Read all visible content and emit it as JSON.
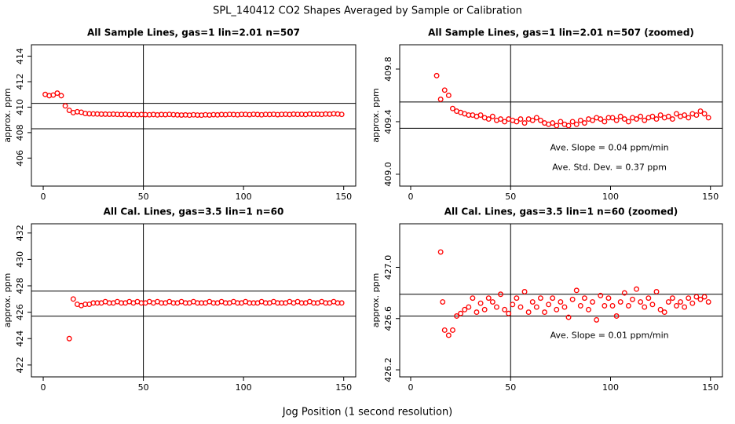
{
  "title": "SPL_140412  CO2 Shapes Averaged by Sample or Calibration",
  "x_label": "Jog Position (1 second resolution)",
  "chart_data": [
    {
      "type": "scatter",
      "title": "All Sample Lines, gas=1 lin=2.01 n=507",
      "y_label": "approx. ppm",
      "color": "#ff0000",
      "xlim": [
        -5.9,
        156
      ],
      "ylim": [
        403.8,
        414.9
      ],
      "xticks": [
        0,
        50,
        100,
        150
      ],
      "yticks": [
        406,
        408,
        410,
        412,
        414
      ],
      "hlines": [
        410.3,
        408.3
      ],
      "vlines": [
        50
      ],
      "x": [
        1,
        3,
        5,
        7,
        9,
        11,
        13,
        15,
        17,
        19,
        21,
        23,
        25,
        27,
        29,
        31,
        33,
        35,
        37,
        39,
        41,
        43,
        45,
        47,
        49,
        51,
        53,
        55,
        57,
        59,
        61,
        63,
        65,
        67,
        69,
        71,
        73,
        75,
        77,
        79,
        81,
        83,
        85,
        87,
        89,
        91,
        93,
        95,
        97,
        99,
        101,
        103,
        105,
        107,
        109,
        111,
        113,
        115,
        117,
        119,
        121,
        123,
        125,
        127,
        129,
        131,
        133,
        135,
        137,
        139,
        141,
        143,
        145,
        147,
        149
      ],
      "values": [
        411.0,
        410.9,
        410.95,
        411.1,
        410.9,
        410.1,
        409.75,
        409.57,
        409.64,
        409.6,
        409.5,
        409.48,
        409.47,
        409.46,
        409.45,
        409.45,
        409.44,
        409.45,
        409.43,
        409.42,
        409.44,
        409.41,
        409.42,
        409.4,
        409.42,
        409.41,
        409.4,
        409.42,
        409.39,
        409.42,
        409.41,
        409.43,
        409.41,
        409.39,
        409.38,
        409.39,
        409.37,
        409.4,
        409.38,
        409.37,
        409.4,
        409.38,
        409.41,
        409.39,
        409.42,
        409.41,
        409.43,
        409.42,
        409.4,
        409.43,
        409.43,
        409.41,
        409.44,
        409.42,
        409.4,
        409.43,
        409.42,
        409.44,
        409.41,
        409.43,
        409.44,
        409.42,
        409.45,
        409.43,
        409.44,
        409.42,
        409.46,
        409.44,
        409.45,
        409.43,
        409.46,
        409.45,
        409.48,
        409.46,
        409.43
      ]
    },
    {
      "type": "scatter",
      "title": "All Sample Lines, gas=1 lin=2.01 n=507 (zoomed)",
      "y_label": "approx. ppm",
      "color": "#ff0000",
      "xlim": [
        -5.5,
        156
      ],
      "ylim": [
        408.91,
        409.985
      ],
      "xticks": [
        0,
        50,
        100,
        150
      ],
      "yticks": [
        {
          "value": 409.0,
          "label": "409.0"
        },
        409.4,
        409.8
      ],
      "hlines": [
        409.55,
        409.35
      ],
      "vlines": [
        50
      ],
      "annotations": [
        "Ave. Slope =  0.04  ppm/min",
        "Ave. Std. Dev. =  0.37  ppm"
      ],
      "x": [
        13,
        15,
        17,
        19,
        21,
        23,
        25,
        27,
        29,
        31,
        33,
        35,
        37,
        39,
        41,
        43,
        45,
        47,
        49,
        51,
        53,
        55,
        57,
        59,
        61,
        63,
        65,
        67,
        69,
        71,
        73,
        75,
        77,
        79,
        81,
        83,
        85,
        87,
        89,
        91,
        93,
        95,
        97,
        99,
        101,
        103,
        105,
        107,
        109,
        111,
        113,
        115,
        117,
        119,
        121,
        123,
        125,
        127,
        129,
        131,
        133,
        135,
        137,
        139,
        141,
        143,
        145,
        147,
        149
      ],
      "values": [
        409.75,
        409.57,
        409.64,
        409.6,
        409.5,
        409.48,
        409.47,
        409.46,
        409.45,
        409.45,
        409.44,
        409.45,
        409.43,
        409.42,
        409.44,
        409.41,
        409.42,
        409.4,
        409.42,
        409.41,
        409.4,
        409.42,
        409.39,
        409.42,
        409.41,
        409.43,
        409.41,
        409.39,
        409.38,
        409.39,
        409.37,
        409.4,
        409.38,
        409.37,
        409.4,
        409.38,
        409.41,
        409.39,
        409.42,
        409.41,
        409.43,
        409.42,
        409.4,
        409.43,
        409.43,
        409.41,
        409.44,
        409.42,
        409.4,
        409.43,
        409.42,
        409.44,
        409.41,
        409.43,
        409.44,
        409.42,
        409.45,
        409.43,
        409.44,
        409.42,
        409.46,
        409.44,
        409.45,
        409.43,
        409.46,
        409.45,
        409.48,
        409.46,
        409.43
      ]
    },
    {
      "type": "scatter",
      "title": "All Cal. Lines, gas=3.5 lin=1 n=60",
      "y_label": "approx. ppm",
      "color": "#ff0000",
      "xlim": [
        -5.9,
        156
      ],
      "ylim": [
        421.1,
        432.7
      ],
      "xticks": [
        0,
        50,
        100,
        150
      ],
      "yticks": [
        422,
        424,
        426,
        428,
        430,
        432
      ],
      "hlines": [
        427.6,
        425.7
      ],
      "vlines": [
        50
      ],
      "x": [
        13,
        15,
        17,
        19,
        21,
        23,
        25,
        27,
        29,
        31,
        33,
        35,
        37,
        39,
        41,
        43,
        45,
        47,
        49,
        51,
        53,
        55,
        57,
        59,
        61,
        63,
        65,
        67,
        69,
        71,
        73,
        75,
        77,
        79,
        81,
        83,
        85,
        87,
        89,
        91,
        93,
        95,
        97,
        99,
        101,
        103,
        105,
        107,
        109,
        111,
        113,
        115,
        117,
        119,
        121,
        123,
        125,
        127,
        129,
        131,
        133,
        135,
        137,
        139,
        141,
        143,
        145,
        147,
        149
      ],
      "values": [
        424.0,
        427.0,
        426.6,
        426.5,
        426.6,
        426.6,
        426.7,
        426.7,
        426.7,
        426.8,
        426.7,
        426.7,
        426.8,
        426.7,
        426.7,
        426.8,
        426.7,
        426.8,
        426.7,
        426.7,
        426.8,
        426.7,
        426.8,
        426.7,
        426.7,
        426.8,
        426.7,
        426.7,
        426.8,
        426.7,
        426.7,
        426.8,
        426.7,
        426.7,
        426.7,
        426.8,
        426.7,
        426.7,
        426.8,
        426.7,
        426.7,
        426.8,
        426.7,
        426.7,
        426.8,
        426.7,
        426.7,
        426.7,
        426.8,
        426.7,
        426.7,
        426.8,
        426.7,
        426.7,
        426.7,
        426.8,
        426.7,
        426.8,
        426.7,
        426.7,
        426.8,
        426.7,
        426.7,
        426.8,
        426.7,
        426.7,
        426.8,
        426.7,
        426.7
      ]
    },
    {
      "type": "scatter",
      "title": "All Cal. Lines, gas=3.5 lin=1 n=60 (zoomed)",
      "y_label": "approx. ppm",
      "color": "#ff0000",
      "xlim": [
        -5.5,
        156
      ],
      "ylim": [
        426.145,
        427.34
      ],
      "xticks": [
        0,
        50,
        100,
        150
      ],
      "yticks": [
        426.2,
        426.6,
        {
          "value": 427.0,
          "label": "427.0"
        }
      ],
      "hlines": [
        426.79,
        426.62
      ],
      "vlines": [
        50
      ],
      "annotations": [
        "Ave. Slope =  0.01  ppm/min"
      ],
      "x": [
        15,
        16,
        17,
        19,
        21,
        23,
        25,
        27,
        29,
        31,
        33,
        35,
        37,
        39,
        41,
        43,
        45,
        47,
        49,
        51,
        53,
        55,
        57,
        59,
        61,
        63,
        65,
        67,
        69,
        71,
        73,
        75,
        77,
        79,
        81,
        83,
        85,
        87,
        89,
        91,
        93,
        95,
        97,
        99,
        101,
        103,
        105,
        107,
        109,
        111,
        113,
        115,
        117,
        119,
        121,
        123,
        125,
        127,
        129,
        131,
        133,
        135,
        137,
        139,
        141,
        143,
        145,
        147,
        149
      ],
      "values": [
        427.12,
        426.73,
        426.51,
        426.47,
        426.51,
        426.62,
        426.64,
        426.67,
        426.69,
        426.76,
        426.65,
        426.72,
        426.67,
        426.76,
        426.73,
        426.69,
        426.79,
        426.67,
        426.64,
        426.71,
        426.76,
        426.69,
        426.81,
        426.65,
        426.73,
        426.69,
        426.76,
        426.65,
        426.71,
        426.76,
        426.67,
        426.73,
        426.69,
        426.61,
        426.75,
        426.82,
        426.7,
        426.76,
        426.67,
        426.73,
        426.59,
        426.78,
        426.7,
        426.76,
        426.7,
        426.62,
        426.73,
        426.8,
        426.7,
        426.75,
        426.83,
        426.73,
        426.69,
        426.76,
        426.71,
        426.81,
        426.67,
        426.65,
        426.73,
        426.76,
        426.7,
        426.73,
        426.69,
        426.76,
        426.72,
        426.77,
        426.75,
        426.77,
        426.73
      ]
    }
  ]
}
